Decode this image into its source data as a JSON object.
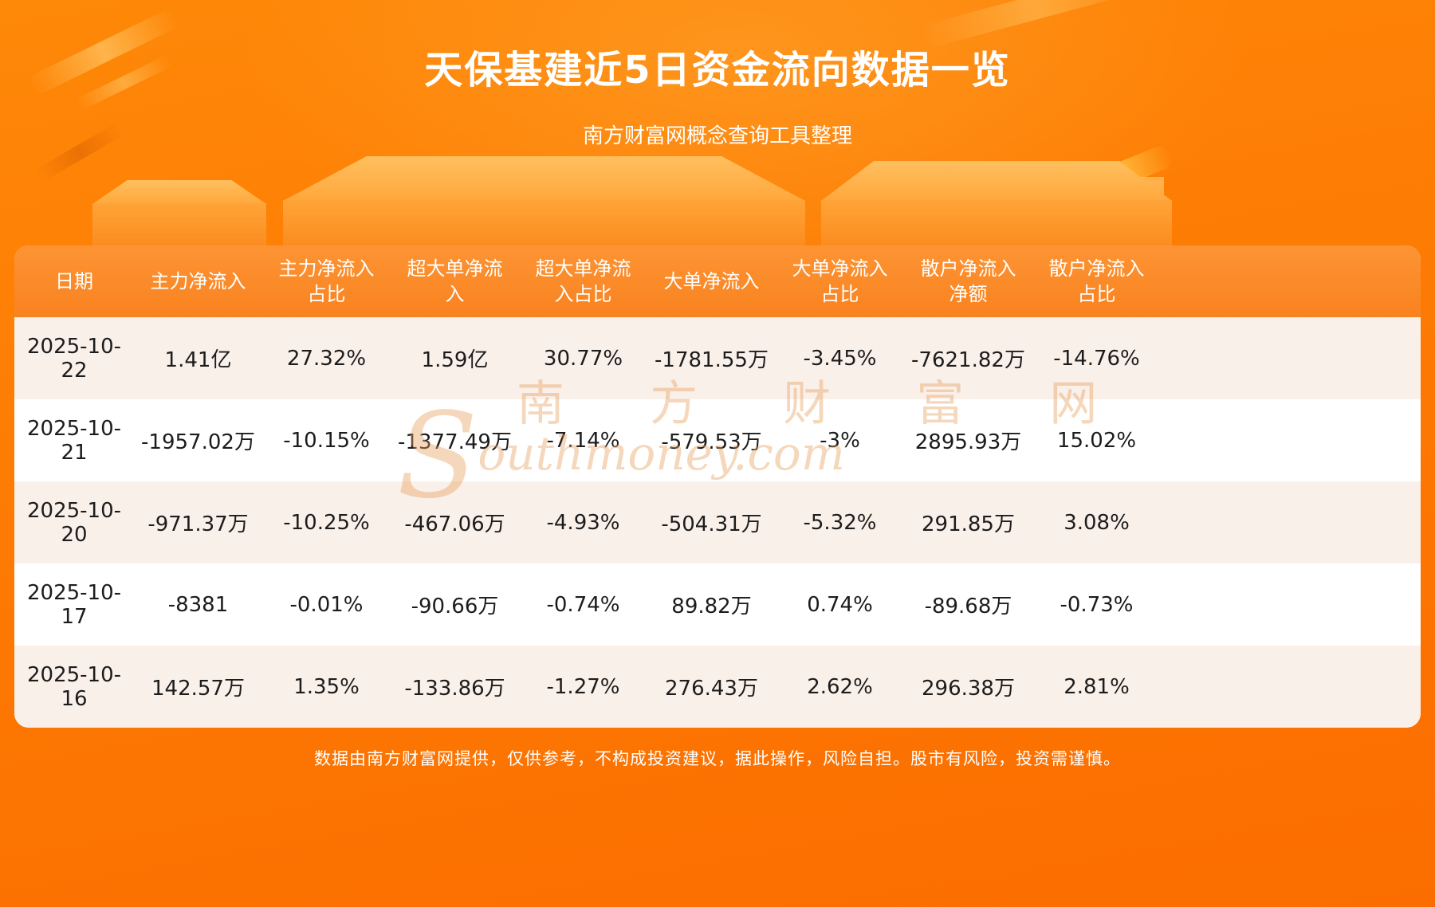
{
  "header": {
    "title": "天保基建近5日资金流向数据一览",
    "subtitle": "南方财富网概念查询工具整理"
  },
  "watermark": {
    "cn": "南 方 财 富 网",
    "en_initial": "S",
    "en_rest": "outhmoney.com"
  },
  "footer": {
    "text": "数据由南方财富网提供，仅供参考，不构成投资建议，据此操作，风险自担。股市有风险，投资需谨慎。"
  },
  "chart_data": {
    "type": "table",
    "title": "天保基建近5日资金流向数据一览",
    "source_note": "南方财富网概念查询工具整理",
    "columns": [
      "日期",
      "主力净流入",
      "主力净流入占比",
      "超大单净流入",
      "超大单净流入占比",
      "大单净流入",
      "大单净流入占比",
      "散户净流入净额",
      "散户净流入占比"
    ],
    "rows": [
      [
        "2025-10-22",
        "1.41亿",
        "27.32%",
        "1.59亿",
        "30.77%",
        "-1781.55万",
        "-3.45%",
        "-7621.82万",
        "-14.76%"
      ],
      [
        "2025-10-21",
        "-1957.02万",
        "-10.15%",
        "-1377.49万",
        "-7.14%",
        "-579.53万",
        "-3%",
        "2895.93万",
        "15.02%"
      ],
      [
        "2025-10-20",
        "-971.37万",
        "-10.25%",
        "-467.06万",
        "-4.93%",
        "-504.31万",
        "-5.32%",
        "291.85万",
        "3.08%"
      ],
      [
        "2025-10-17",
        "-8381",
        "-0.01%",
        "-90.66万",
        "-0.74%",
        "89.82万",
        "0.74%",
        "-89.68万",
        "-0.73%"
      ],
      [
        "2025-10-16",
        "142.57万",
        "1.35%",
        "-133.86万",
        "-1.27%",
        "276.43万",
        "2.62%",
        "296.38万",
        "2.81%"
      ]
    ]
  },
  "colors": {
    "background_top": "#fe8808",
    "background_bottom": "#fb6d00",
    "table_header": "#f9821f",
    "row_light": "#faf0ea",
    "row_white": "#ffffff",
    "header_text": "#ffffff",
    "cell_text": "#1c1c1c",
    "title_text": "#ffffff"
  }
}
